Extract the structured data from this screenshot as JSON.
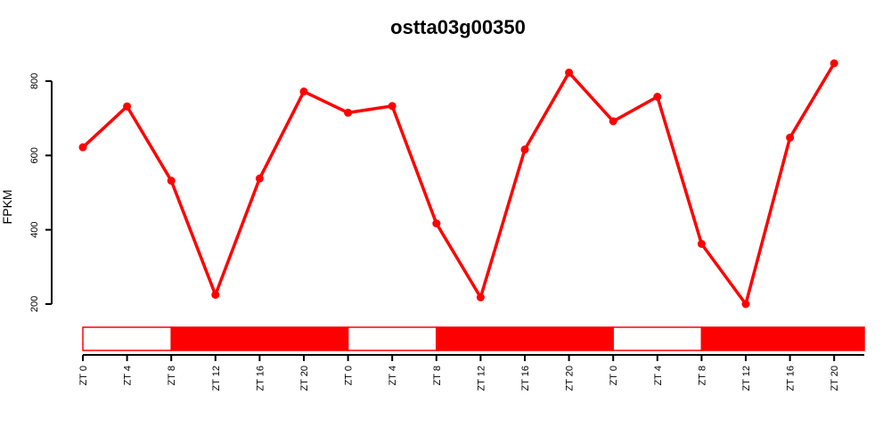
{
  "chart_data": {
    "type": "line",
    "title": "ostta03g00350",
    "xlabel": "",
    "ylabel": "FPKM",
    "x": [
      "ZT 0",
      "ZT 4",
      "ZT 8",
      "ZT 12",
      "ZT 16",
      "ZT 20",
      "ZT 0",
      "ZT 4",
      "ZT 8",
      "ZT 12",
      "ZT 16",
      "ZT 20",
      "ZT 0",
      "ZT 4",
      "ZT 8",
      "ZT 12",
      "ZT 16",
      "ZT 20"
    ],
    "series": [
      {
        "name": "",
        "color": "#ff0000",
        "values": [
          622,
          732,
          532,
          225,
          538,
          772,
          715,
          733,
          417,
          218,
          616,
          823,
          692,
          758,
          362,
          200,
          648,
          848
        ]
      }
    ],
    "yticks": [
      200,
      400,
      600,
      800
    ],
    "grid": false,
    "legend": "none",
    "light_dark_bar": {
      "light_color": "#ffffff",
      "dark_color": "#ff0000",
      "border_color": "#ff0000",
      "segments": [
        {
          "state": "light",
          "start_index": 0,
          "end_index": 2
        },
        {
          "state": "dark",
          "start_index": 2,
          "end_index": 6
        },
        {
          "state": "light",
          "start_index": 6,
          "end_index": 8
        },
        {
          "state": "dark",
          "start_index": 8,
          "end_index": 12
        },
        {
          "state": "light",
          "start_index": 12,
          "end_index": 14
        },
        {
          "state": "dark",
          "start_index": 14,
          "end_index": 18
        }
      ]
    }
  }
}
